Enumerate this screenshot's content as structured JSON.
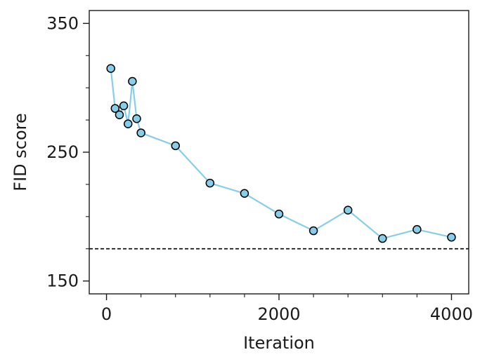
{
  "chart_data": {
    "type": "line",
    "title": "",
    "xlabel": "Iteration",
    "ylabel": "FID score",
    "xlim": [
      -200,
      4200
    ],
    "ylim": [
      140,
      360
    ],
    "x_ticks_major": [
      0,
      2000,
      4000
    ],
    "x_ticks_minor": [
      400,
      800,
      1200,
      1600,
      2400,
      2800,
      3200,
      3600
    ],
    "y_ticks_major": [
      150,
      250,
      350
    ],
    "y_ticks_minor": [
      175,
      200,
      225,
      275,
      300,
      325
    ],
    "x_tick_labels": [
      "0",
      "2000",
      "4000"
    ],
    "y_tick_labels": [
      "150",
      "250",
      "350"
    ],
    "grid": false,
    "series": [
      {
        "line_color": "#87ceeb",
        "marker_fill": "#87ceeb",
        "marker_edge": "#000000",
        "x": [
          50,
          100,
          150,
          200,
          250,
          300,
          350,
          400,
          800,
          1200,
          1600,
          2000,
          2400,
          2800,
          3200,
          3600,
          4000
        ],
        "y": [
          315,
          284,
          279,
          286,
          272,
          305,
          276,
          265,
          255,
          226,
          218,
          202,
          189,
          205,
          183,
          190,
          184
        ]
      }
    ],
    "reference_line": {
      "y": 175,
      "style": "dashed",
      "color": "#000000"
    }
  }
}
